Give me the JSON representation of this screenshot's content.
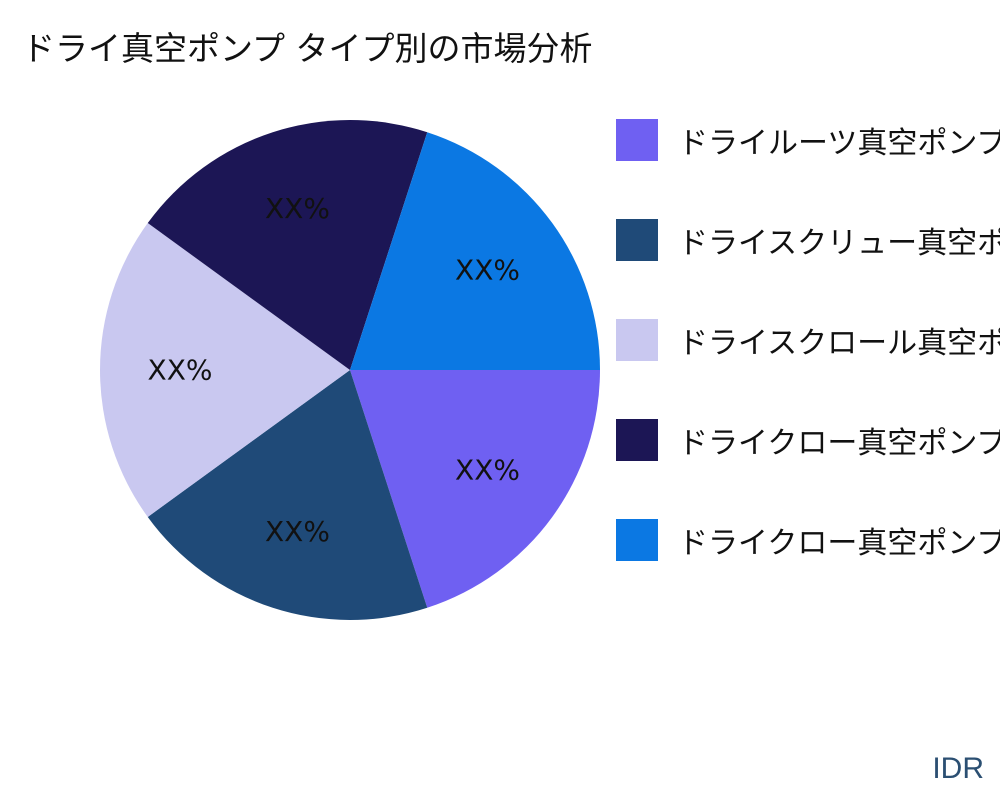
{
  "chart_data": {
    "type": "pie",
    "title": "ドライ真空ポンプ タイプ別の市場分析",
    "slices": [
      {
        "name": "ドライルーツ真空ポンプ",
        "value": 20,
        "label": "XX%",
        "color": "#6f60f2"
      },
      {
        "name": "ドライスクリュー真空ポンプ",
        "value": 20,
        "label": "XX%",
        "color": "#1f4a78"
      },
      {
        "name": "ドライスクロール真空ポンプ",
        "value": 20,
        "label": "XX%",
        "color": "#c9c8f0"
      },
      {
        "name": "ドライクロー真空ポンプ",
        "value": 20,
        "label": "XX%",
        "color": "#1c1655"
      },
      {
        "name": "ドライクロー真空ポンプ",
        "value": 20,
        "label": "XX%",
        "color": "#0b78e3"
      }
    ],
    "legend_position": "right"
  },
  "watermark": "IDR"
}
